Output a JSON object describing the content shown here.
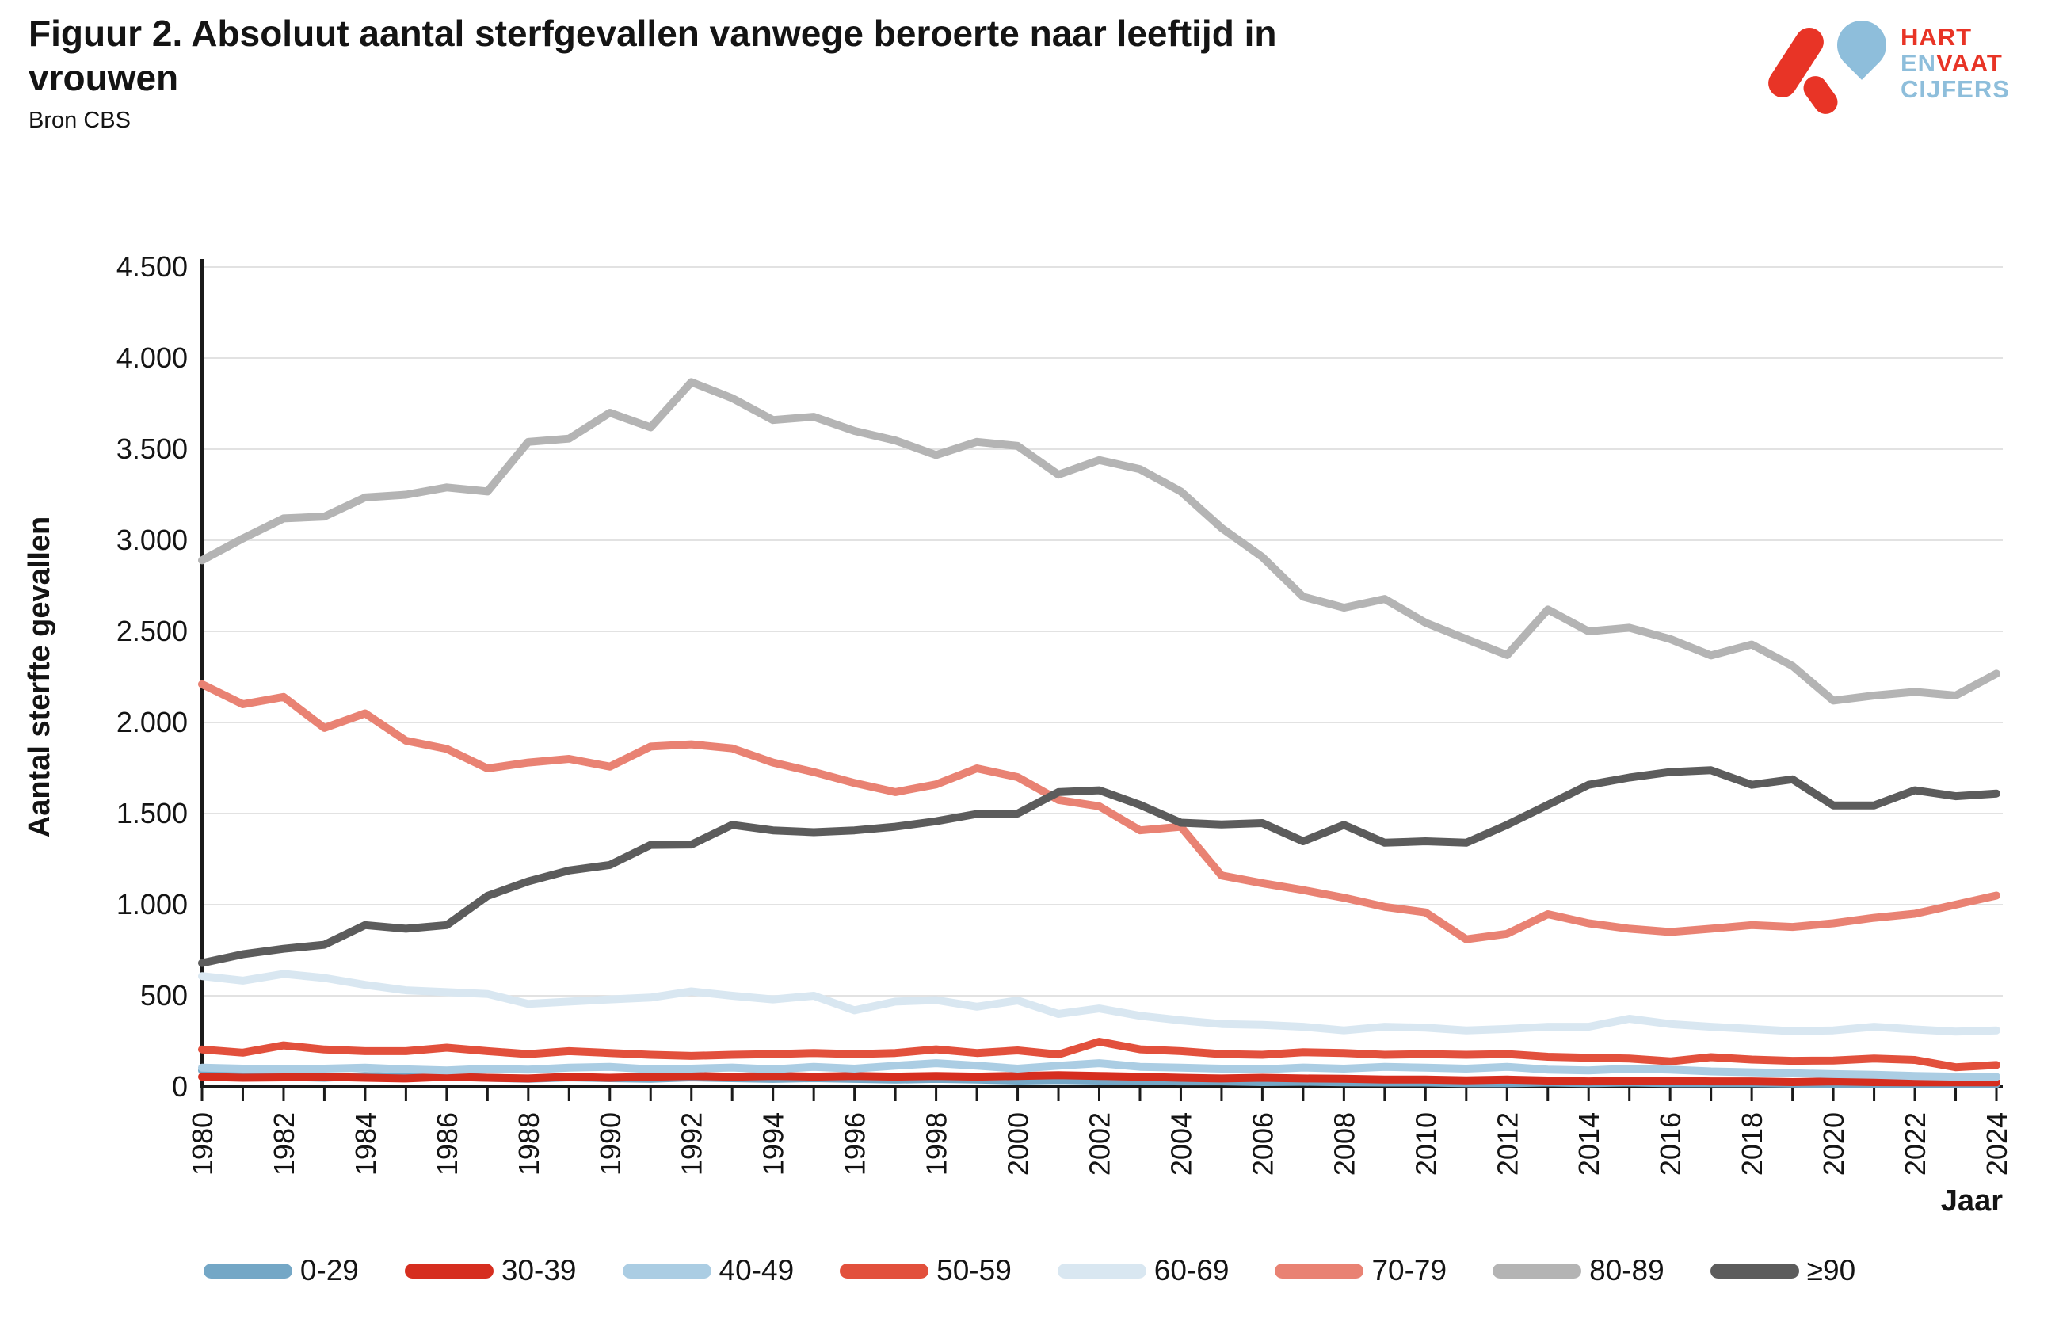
{
  "header": {
    "title_line1": "Figuur 2. Absoluut aantal sterfgevallen vanwege beroerte naar leeftijd in",
    "title_line2": "vrouwen",
    "source": "Bron CBS"
  },
  "logo": {
    "word1": "HART",
    "word2a": "EN",
    "word2b": "VAAT",
    "word3": "CIJFERS",
    "red": "#E83426",
    "blue": "#8EBEDB"
  },
  "chart_data": {
    "type": "line",
    "title": "Figuur 2. Absoluut aantal sterfgevallen vanwege beroerte naar leeftijd in vrouwen",
    "xlabel": "Jaar",
    "ylabel": "Aantal sterfte gevallen",
    "ylim": [
      0,
      4500
    ],
    "ytick_step": 500,
    "ytick_labels": [
      "0",
      "500",
      "1.000",
      "1.500",
      "2.000",
      "2.500",
      "3.000",
      "3.500",
      "4.000",
      "4.500"
    ],
    "x_start": 1980,
    "x_end": 2024,
    "xtick_label_every": 2,
    "grid": true,
    "legend_position": "bottom",
    "axis_color": "#1a1a1a",
    "grid_color": "#d9d9d9",
    "series": [
      {
        "name": "0-29",
        "color": "#74A7C6",
        "values": [
          90,
          75,
          55,
          50,
          60,
          55,
          58,
          50,
          45,
          52,
          48,
          45,
          52,
          48,
          44,
          48,
          44,
          40,
          44,
          40,
          35,
          38,
          35,
          33,
          30,
          30,
          26,
          28,
          25,
          24,
          24,
          20,
          20,
          24,
          20,
          24,
          20,
          20,
          20,
          18,
          15,
          18,
          15,
          15,
          15
        ]
      },
      {
        "name": "30-39",
        "color": "#D62E1F",
        "values": [
          55,
          50,
          52,
          55,
          50,
          46,
          55,
          50,
          46,
          55,
          50,
          55,
          60,
          55,
          60,
          56,
          60,
          56,
          60,
          56,
          60,
          64,
          60,
          55,
          50,
          46,
          50,
          46,
          45,
          40,
          40,
          36,
          40,
          35,
          30,
          34,
          34,
          30,
          30,
          26,
          30,
          26,
          25,
          25,
          25
        ]
      },
      {
        "name": "40-49",
        "color": "#ABCDE3",
        "values": [
          105,
          100,
          96,
          100,
          105,
          96,
          90,
          100,
          95,
          105,
          110,
          96,
          100,
          106,
          96,
          110,
          100,
          116,
          130,
          116,
          100,
          116,
          130,
          110,
          105,
          100,
          96,
          106,
          100,
          110,
          105,
          100,
          110,
          95,
          90,
          100,
          95,
          85,
          80,
          75,
          70,
          66,
          60,
          56,
          55
        ]
      },
      {
        "name": "50-59",
        "color": "#E2503C",
        "values": [
          205,
          188,
          228,
          205,
          196,
          196,
          215,
          196,
          180,
          196,
          186,
          176,
          170,
          176,
          180,
          186,
          180,
          186,
          206,
          186,
          200,
          178,
          248,
          206,
          196,
          180,
          176,
          190,
          186,
          176,
          180,
          176,
          180,
          165,
          160,
          155,
          140,
          163,
          150,
          143,
          145,
          155,
          148,
          108,
          120
        ]
      },
      {
        "name": "60-69",
        "color": "#D9E7F1",
        "values": [
          608,
          583,
          620,
          598,
          560,
          530,
          520,
          510,
          455,
          468,
          480,
          490,
          524,
          500,
          480,
          500,
          420,
          468,
          476,
          440,
          474,
          400,
          430,
          390,
          365,
          345,
          340,
          330,
          310,
          330,
          325,
          310,
          318,
          330,
          330,
          374,
          345,
          330,
          318,
          305,
          310,
          330,
          315,
          303,
          310
        ]
      },
      {
        "name": "70-79",
        "color": "#E98273",
        "values": [
          2210,
          2100,
          2140,
          1970,
          2050,
          1900,
          1855,
          1748,
          1780,
          1800,
          1758,
          1868,
          1880,
          1858,
          1780,
          1728,
          1668,
          1618,
          1660,
          1748,
          1700,
          1575,
          1540,
          1408,
          1428,
          1160,
          1118,
          1080,
          1038,
          988,
          958,
          810,
          840,
          948,
          898,
          868,
          850,
          868,
          888,
          878,
          898,
          928,
          950,
          1000,
          1050
        ]
      },
      {
        "name": "80-89",
        "color": "#B4B4B4",
        "values": [
          2890,
          3010,
          3120,
          3130,
          3235,
          3250,
          3290,
          3268,
          3540,
          3558,
          3700,
          3620,
          3868,
          3780,
          3660,
          3678,
          3600,
          3548,
          3468,
          3540,
          3518,
          3360,
          3440,
          3390,
          3268,
          3068,
          2908,
          2690,
          2630,
          2678,
          2548,
          2458,
          2370,
          2620,
          2500,
          2520,
          2458,
          2368,
          2428,
          2310,
          2120,
          2148,
          2168,
          2148,
          2268
        ]
      },
      {
        "name": "≥90",
        "color": "#5C5C5C",
        "values": [
          680,
          728,
          758,
          780,
          888,
          868,
          888,
          1048,
          1128,
          1188,
          1218,
          1328,
          1330,
          1438,
          1408,
          1398,
          1408,
          1428,
          1458,
          1498,
          1500,
          1618,
          1628,
          1548,
          1450,
          1440,
          1448,
          1348,
          1438,
          1340,
          1348,
          1340,
          1438,
          1548,
          1658,
          1698,
          1728,
          1738,
          1658,
          1688,
          1545,
          1545,
          1628,
          1595,
          1610
        ]
      }
    ]
  }
}
